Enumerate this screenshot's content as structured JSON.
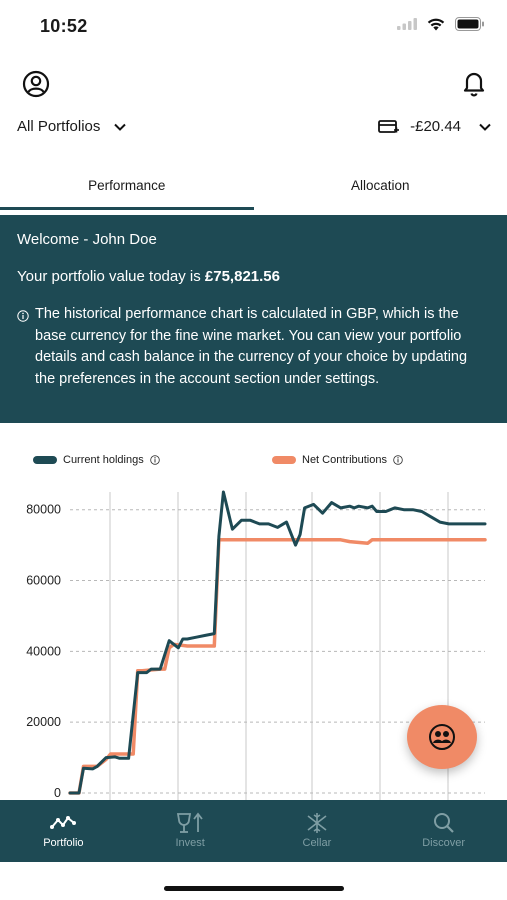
{
  "status_bar": {
    "time": "10:52"
  },
  "header": {
    "portfolio_select": "All Portfolios",
    "cash_balance": "-£20.44"
  },
  "tabs": [
    {
      "label": "Performance",
      "active": true
    },
    {
      "label": "Allocation",
      "active": false
    }
  ],
  "banner": {
    "welcome": "Welcome - John Doe",
    "value_prefix": "Your portfolio value today is ",
    "value_amount": "£75,821.56",
    "info_text": "The historical performance chart is calculated in GBP, which is the base currency for the fine wine market. You can view your portfolio details and cash balance in the currency of your choice by updating the preferences in the account section under settings."
  },
  "colors": {
    "brand_dark": "#1e4a54",
    "accent": "#f08a66"
  },
  "chart_data": {
    "type": "line",
    "ylim": [
      0,
      85000
    ],
    "y_ticks": [
      "80000",
      "60000",
      "40000",
      "20000",
      "0"
    ],
    "grid": true,
    "legend_placement": "top",
    "series": [
      {
        "name": "Current holdings",
        "color": "#1e4a54",
        "x": [
          0,
          2,
          3,
          5,
          6,
          8,
          10,
          11,
          13,
          15,
          16,
          17,
          18,
          20,
          22,
          23,
          24,
          25,
          26,
          28,
          30,
          32,
          33,
          34,
          36,
          38,
          40,
          41,
          42,
          43,
          44,
          46,
          48,
          50,
          51,
          52,
          54,
          56,
          58,
          60,
          62,
          63,
          64,
          66,
          67,
          68,
          70,
          71,
          72,
          74,
          76,
          78,
          80,
          82,
          84,
          86,
          87,
          88,
          90,
          91,
          92
        ],
        "values": [
          0,
          0,
          7000,
          6800,
          7500,
          10000,
          10200,
          9800,
          9800,
          34000,
          34000,
          34000,
          35000,
          35000,
          43000,
          42000,
          41000,
          43500,
          43500,
          44000,
          44500,
          45000,
          72500,
          85000,
          74500,
          77000,
          77000,
          76500,
          76000,
          76000,
          76000,
          75000,
          76500,
          70000,
          73000,
          80500,
          81500,
          79000,
          82000,
          80500,
          81000,
          80500,
          81000,
          80500,
          81000,
          79500,
          79500,
          80000,
          80500,
          80000,
          80000,
          79500,
          78000,
          76500,
          76000,
          76000,
          76000,
          76000,
          76000,
          76000,
          76000
        ]
      },
      {
        "name": "Net Contributions",
        "color": "#f08a66",
        "x": [
          0,
          2,
          3,
          6,
          8,
          9,
          12,
          14,
          15,
          16,
          20,
          21,
          22,
          23,
          26,
          31,
          32,
          33,
          60,
          62,
          66,
          67,
          70,
          92
        ],
        "values": [
          0,
          0,
          7500,
          7500,
          9500,
          11000,
          11000,
          11000,
          34500,
          34500,
          35000,
          35000,
          41000,
          42000,
          41500,
          41500,
          41500,
          71500,
          71500,
          71000,
          70500,
          71500,
          71500,
          71500
        ]
      }
    ]
  },
  "nav": [
    {
      "label": "Portfolio",
      "icon": "chart-line-icon",
      "active": true
    },
    {
      "label": "Invest",
      "icon": "glass-arrow-icon",
      "active": false
    },
    {
      "label": "Cellar",
      "icon": "snowflake-icon",
      "active": false
    },
    {
      "label": "Discover",
      "icon": "search-icon",
      "active": false
    }
  ]
}
